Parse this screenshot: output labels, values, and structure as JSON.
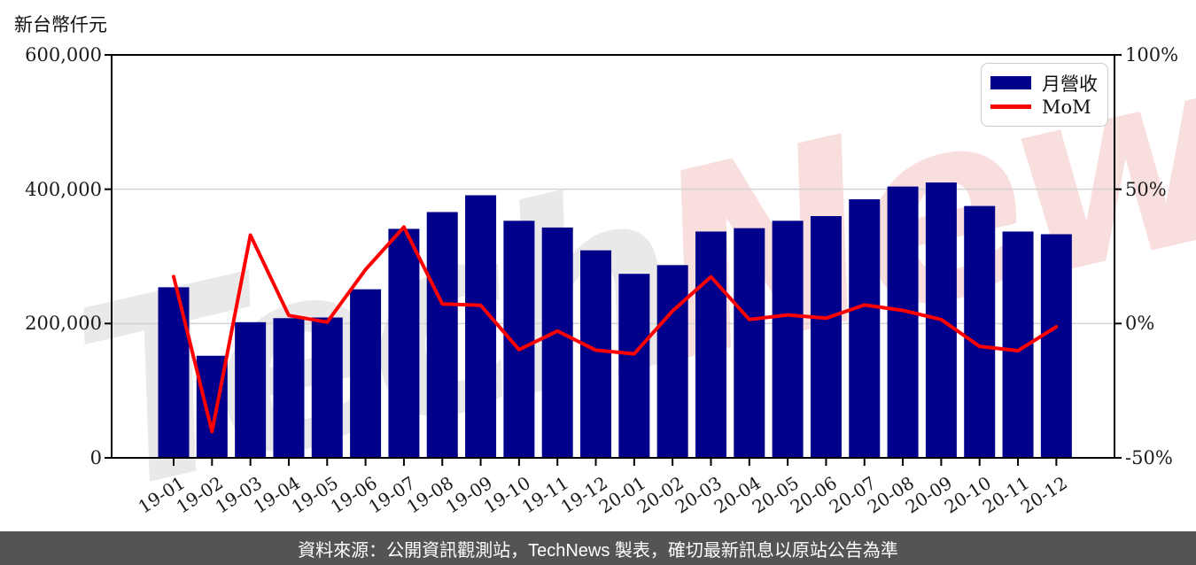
{
  "title": "新台幣仟元",
  "legend": {
    "series1_label": "月營收",
    "series2_label": "MoM"
  },
  "footer": {
    "text": "資料來源：公開資訊觀測站，TechNews 製表，確切最新訊息以原站公告為準"
  },
  "watermark": {
    "part1": "Tech",
    "part2": "News"
  },
  "colors": {
    "bar": "#00008b",
    "line": "#ff0000",
    "grid": "#d3d3d3",
    "axis": "#000000",
    "watermark_gray": "#e9e9e9",
    "watermark_pink": "#f9dede",
    "footer_bg": "#545454",
    "footer_text": "#ffffff"
  },
  "chart_data": {
    "type": "bar",
    "title": "新台幣仟元",
    "categories": [
      "19-01",
      "19-02",
      "19-03",
      "19-04",
      "19-05",
      "19-06",
      "19-07",
      "19-08",
      "19-09",
      "19-10",
      "19-11",
      "19-12",
      "20-01",
      "20-02",
      "20-03",
      "20-04",
      "20-05",
      "20-06",
      "20-07",
      "20-08",
      "20-09",
      "20-10",
      "20-11",
      "20-12"
    ],
    "series": [
      {
        "name": "月營收",
        "type": "bar",
        "axis": "left",
        "unit": "新台幣仟元",
        "values": [
          254000,
          152000,
          202000,
          208000,
          209000,
          251000,
          341000,
          366000,
          391000,
          353000,
          343000,
          309000,
          274000,
          287000,
          337000,
          342000,
          353000,
          360000,
          385000,
          404000,
          410000,
          375000,
          337000,
          333000
        ]
      },
      {
        "name": "MoM",
        "type": "line",
        "axis": "right",
        "unit": "%",
        "values": [
          17.5,
          -40.2,
          32.9,
          3.0,
          0.5,
          20.1,
          35.9,
          7.3,
          6.8,
          -9.7,
          -2.8,
          -9.9,
          -11.3,
          4.7,
          17.4,
          1.5,
          3.2,
          2.0,
          6.9,
          4.9,
          1.5,
          -8.5,
          -10.1,
          -1.2
        ]
      }
    ],
    "left_axis": {
      "tick_labels": [
        "600,000",
        "400,000",
        "200,000",
        "0"
      ],
      "tick_values": [
        600000,
        400000,
        200000,
        0
      ],
      "min": 0,
      "max": 600000
    },
    "right_axis": {
      "tick_labels": [
        "100%",
        "50%",
        "0%",
        "-50%"
      ],
      "tick_values": [
        100,
        50,
        0,
        -50
      ],
      "min": -50,
      "max": 100
    },
    "grid": "horizontal",
    "legend_position": "top-right"
  }
}
